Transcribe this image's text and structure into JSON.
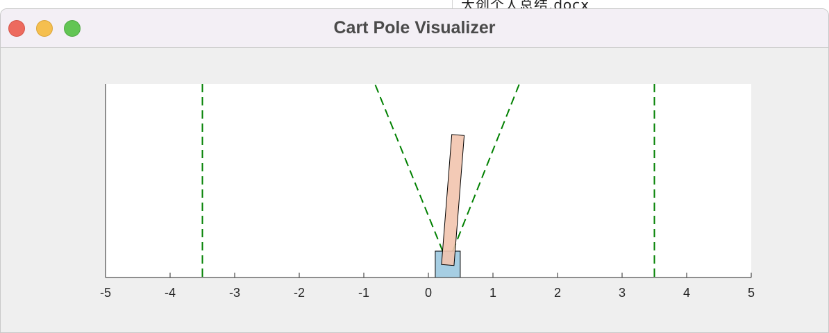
{
  "background_window": {
    "title_fragment": "大创个人总结.docx"
  },
  "window": {
    "title": "Cart Pole Visualizer",
    "controls": {
      "close": "close-button",
      "minimize": "minimize-button",
      "zoom": "zoom-button"
    }
  },
  "colors": {
    "window_bg": "#efefef",
    "plot_bg": "#ffffff",
    "guide_line": "#008000",
    "cart_fill": "#a6cee3",
    "pole_fill": "#f2c4ae",
    "outline": "#000000"
  },
  "chart_data": {
    "type": "scatter",
    "xlim": [
      -5,
      5
    ],
    "x_ticks": [
      "-5",
      "-4",
      "-3",
      "-2",
      "-1",
      "0",
      "1",
      "2",
      "3",
      "4",
      "5"
    ],
    "x_tick_values": [
      -5,
      -4,
      -3,
      -2,
      -1,
      0,
      1,
      2,
      3,
      4,
      5
    ],
    "track_limits": [
      -3.5,
      3.5
    ],
    "cart_position": 0.3,
    "pole_angle_deg": 4.5,
    "angle_limit_guides": true,
    "grid": false
  }
}
